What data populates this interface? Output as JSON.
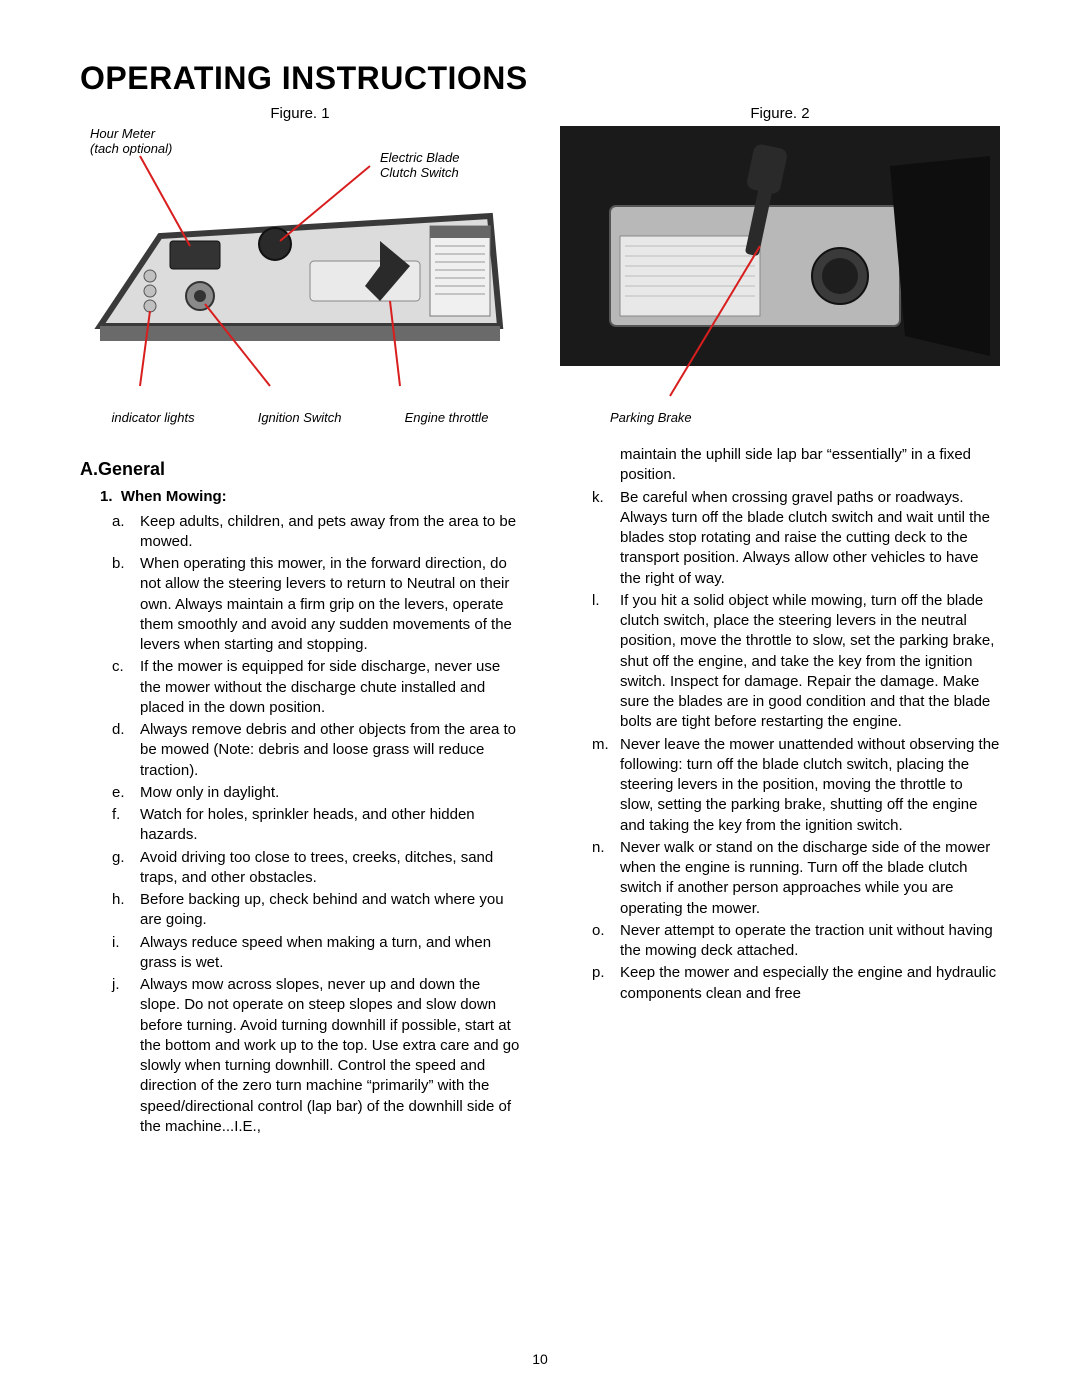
{
  "title": "OPERATING INSTRUCTIONS",
  "page_number": "10",
  "figure1": {
    "caption": "Figure. 1",
    "labels": {
      "hour_meter": "Hour Meter\n(tach optional)",
      "electric_blade": "Electric Blade\nClutch Switch",
      "indicator_lights": "indicator lights",
      "ignition_switch": "Ignition Switch",
      "engine_throttle": "Engine throttle"
    },
    "colors": {
      "panel": "#dcdcdc",
      "panel_border": "#3a3a3a",
      "leader": "#d81e1e",
      "knob": "#2a2a2a",
      "ind_light": "#c0c0c0"
    }
  },
  "figure2": {
    "caption": "Figure. 2",
    "labels": {
      "parking_brake": "Parking Brake"
    },
    "colors": {
      "bg": "#1a1a1a",
      "panel": "#b8b8b8",
      "label_plate": "#e8e8e8",
      "handle": "#2a2a2a",
      "leader": "#d81e1e"
    }
  },
  "section": {
    "heading": "A.General",
    "sub1": {
      "num": "1.",
      "title": "When Mowing:",
      "items": [
        {
          "m": "a.",
          "t": "Keep adults, children, and pets away from the area to be mowed."
        },
        {
          "m": "b.",
          "t": "When operating this mower, in the forward direction, do not allow the steering levers to return to Neutral on their own. Always maintain a firm grip on the levers, operate them smoothly and avoid any sudden movements of the levers when starting and stopping."
        },
        {
          "m": "c.",
          "t": "If the mower is equipped for side discharge, never use the mower without the discharge chute installed and placed in the down position."
        },
        {
          "m": "d.",
          "t": "Always remove debris and other objects from the area to be mowed (Note: debris and loose grass will reduce traction)."
        },
        {
          "m": "e.",
          "t": "Mow only in daylight."
        },
        {
          "m": "f.",
          "t": "Watch for holes, sprinkler heads, and other hidden hazards."
        },
        {
          "m": "g.",
          "t": "Avoid driving too close to trees, creeks, ditches, sand traps, and other obstacles."
        },
        {
          "m": "h.",
          "t": "Before backing up, check behind and watch where you are going."
        },
        {
          "m": "i.",
          "t": "Always reduce speed when making a turn, and when grass is wet."
        },
        {
          "m": "j.",
          "t": "Always mow across slopes, never up and down the slope. Do not operate on steep slopes and slow down before turning. Avoid turning downhill if possible, start at the bottom and work up to the top. Use extra care and go slowly when turning downhill. Control the speed and direction of the zero turn machine “primarily” with the speed/directional control (lap bar) of the downhill side of the machine...I.E.,"
        }
      ],
      "col2_lead": "maintain the uphill side lap bar “essentially” in a fixed position.",
      "items2": [
        {
          "m": "k.",
          "t": "Be careful when crossing gravel paths or roadways. Always turn off the blade clutch switch and wait until the blades stop rotating and raise the cutting deck to the transport position. Always allow other vehicles to have the right of way."
        },
        {
          "m": "l.",
          "t": "If you hit a solid object while mowing, turn off the blade clutch switch, place the steering levers in the neutral position, move the throttle to slow, set the parking brake, shut off the engine, and take the key from the ignition switch. Inspect for damage. Repair the damage. Make sure the blades are in good condition and that the blade bolts are tight before restarting the engine."
        },
        {
          "m": "m.",
          "t": "Never leave the mower unattended without observing the following: turn off the blade clutch switch, placing the steering levers in the position, moving the throttle to slow, setting the parking brake, shutting off the engine and taking the key from the ignition switch."
        },
        {
          "m": "n.",
          "t": "Never walk or stand on the discharge side of the mower when the engine is running. Turn off the blade clutch switch if another person approaches while you are operating the mower."
        },
        {
          "m": "o.",
          "t": "Never attempt to operate the traction unit without having the mowing deck attached."
        },
        {
          "m": "p.",
          "t": "Keep the mower and especially the engine and hydraulic components clean and free"
        }
      ]
    }
  }
}
